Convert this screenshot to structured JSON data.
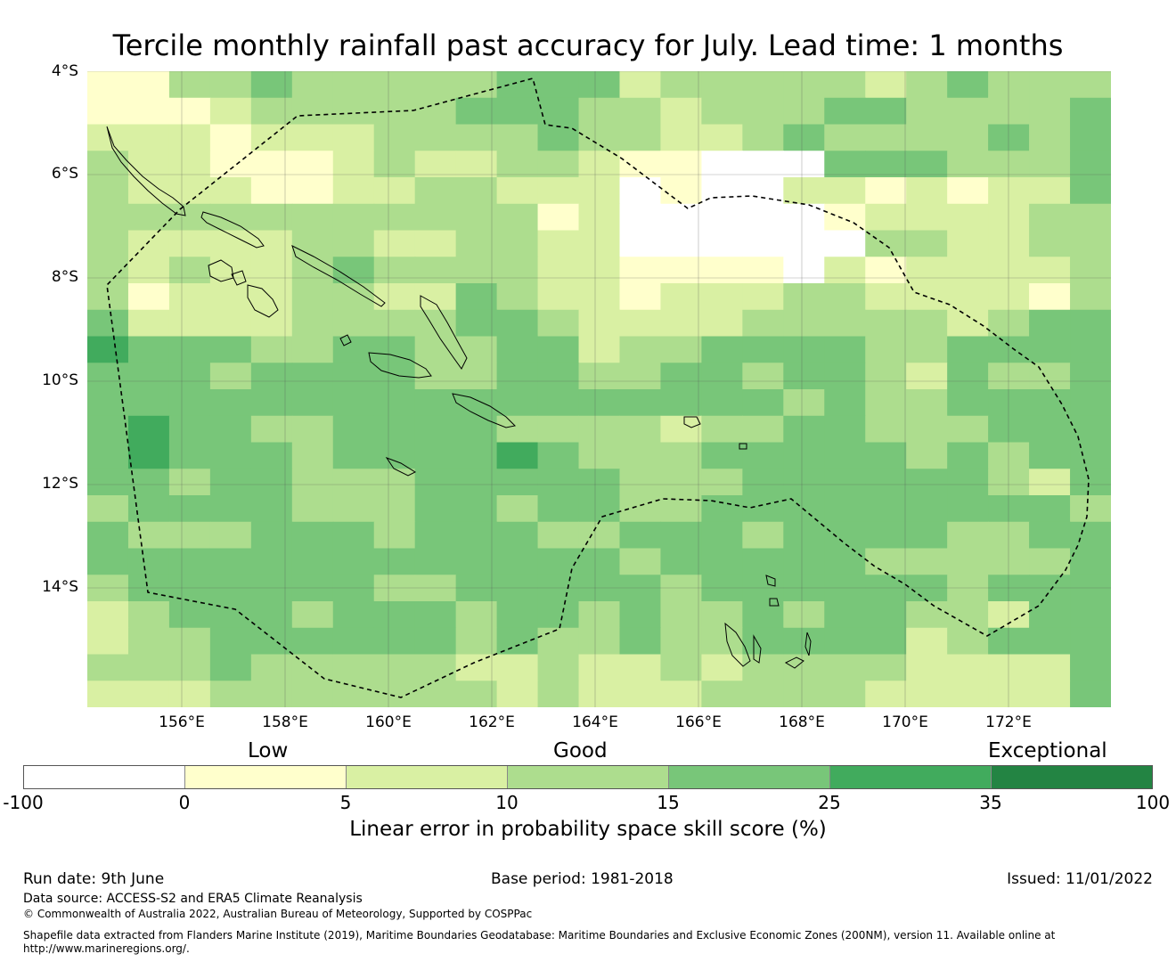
{
  "title": "Tercile monthly rainfall past accuracy for July. Lead time: 1 months",
  "map": {
    "lat_labels": [
      "4°S",
      "6°S",
      "8°S",
      "10°S",
      "12°S",
      "14°S"
    ],
    "lon_labels": [
      "156°E",
      "158°E",
      "160°E",
      "162°E",
      "164°E",
      "166°E",
      "168°E",
      "170°E",
      "172°E"
    ]
  },
  "legend": {
    "categories": [
      "Low",
      "Good",
      "Exceptional"
    ],
    "ticks": [
      "-100",
      "0",
      "5",
      "10",
      "15",
      "25",
      "35",
      "100"
    ],
    "colors": [
      "#ffffff",
      "#ffffcc",
      "#d9f0a3",
      "#addd8e",
      "#78c679",
      "#41ab5d",
      "#238443"
    ],
    "label": "Linear error in probability space skill score (%)"
  },
  "footer": {
    "run_date": "Run date: 9th June",
    "base_period": "Base period: 1981-2018",
    "issued": "Issued: 11/01/2022",
    "data_source": "Data source: ACCESS-S2 and ERA5 Climate Reanalysis",
    "copyright": "© Commonwealth of Australia 2022, Australian Bureau of Meteorology, Supported by COSPPac",
    "shapefile_line1": "Shapefile data extracted from Flanders Marine Institute (2019), Maritime Boundaries Geodatabase: Maritime Boundaries and Exclusive Economic Zones (200NM), version 11. Available online at",
    "shapefile_line2": "http://www.marineregions.org/."
  }
}
